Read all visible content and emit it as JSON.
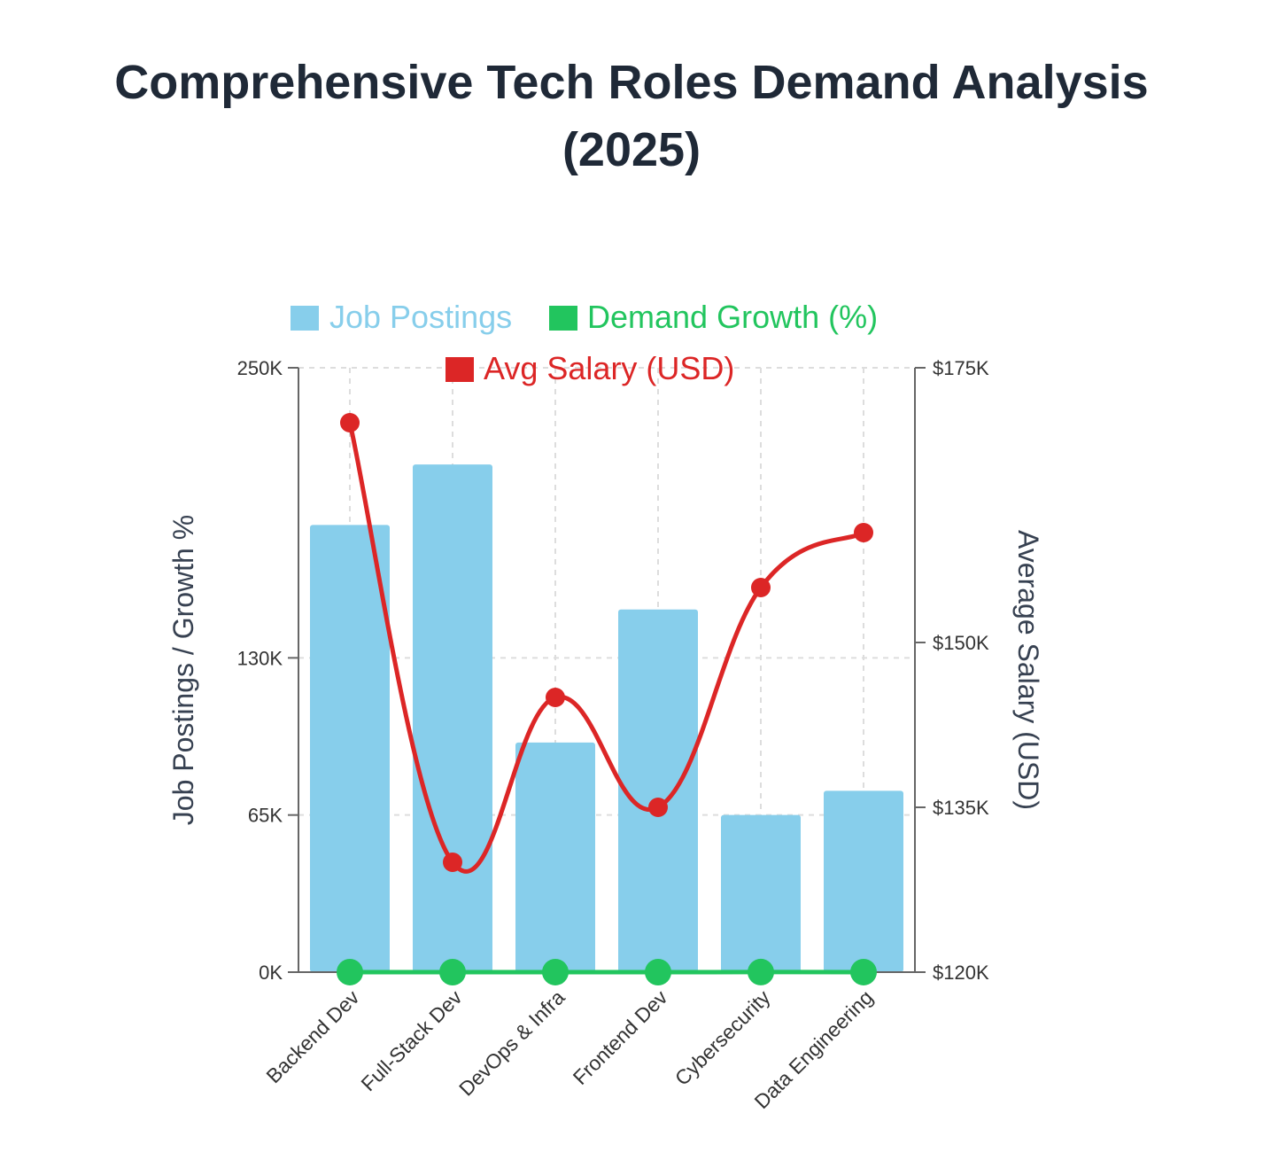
{
  "chart_data": {
    "type": "bar",
    "title_lines": [
      "Comprehensive Tech Roles Demand Analysis",
      "(2025)"
    ],
    "categories": [
      "Backend Dev",
      "Full-Stack Dev",
      "DevOps & Infra",
      "Frontend Dev",
      "Cybersecurity",
      "Data Engineering"
    ],
    "series": [
      {
        "name": "Job Postings",
        "type": "bar",
        "axis": "left",
        "color": "#87ceeb",
        "values": [
          185000,
          210000,
          95000,
          150000,
          65000,
          75000
        ]
      },
      {
        "name": "Demand Growth (%)",
        "type": "line",
        "axis": "left",
        "color": "#22c55e",
        "values": [
          18,
          15,
          22,
          9,
          25,
          20
        ]
      },
      {
        "name": "Avg Salary (USD)",
        "type": "line",
        "axis": "right",
        "color": "#dc2626",
        "values": [
          170000,
          130000,
          145000,
          135000,
          155000,
          160000
        ]
      }
    ],
    "left_axis": {
      "label": "Job Postings / Growth %",
      "range": [
        0,
        250000
      ],
      "ticks": [
        {
          "value": 0,
          "label": "0K"
        },
        {
          "value": 65000,
          "label": "65K"
        },
        {
          "value": 130000,
          "label": "130K"
        },
        {
          "value": 250000,
          "label": "250K"
        }
      ]
    },
    "right_axis": {
      "label": "Average Salary (USD)",
      "range": [
        120000,
        175000
      ],
      "ticks": [
        {
          "value": 120000,
          "label": "$120K"
        },
        {
          "value": 135000,
          "label": "$135K"
        },
        {
          "value": 150000,
          "label": "$150K"
        },
        {
          "value": 175000,
          "label": "$175K"
        }
      ]
    },
    "grid": true,
    "legend_position": "top"
  }
}
